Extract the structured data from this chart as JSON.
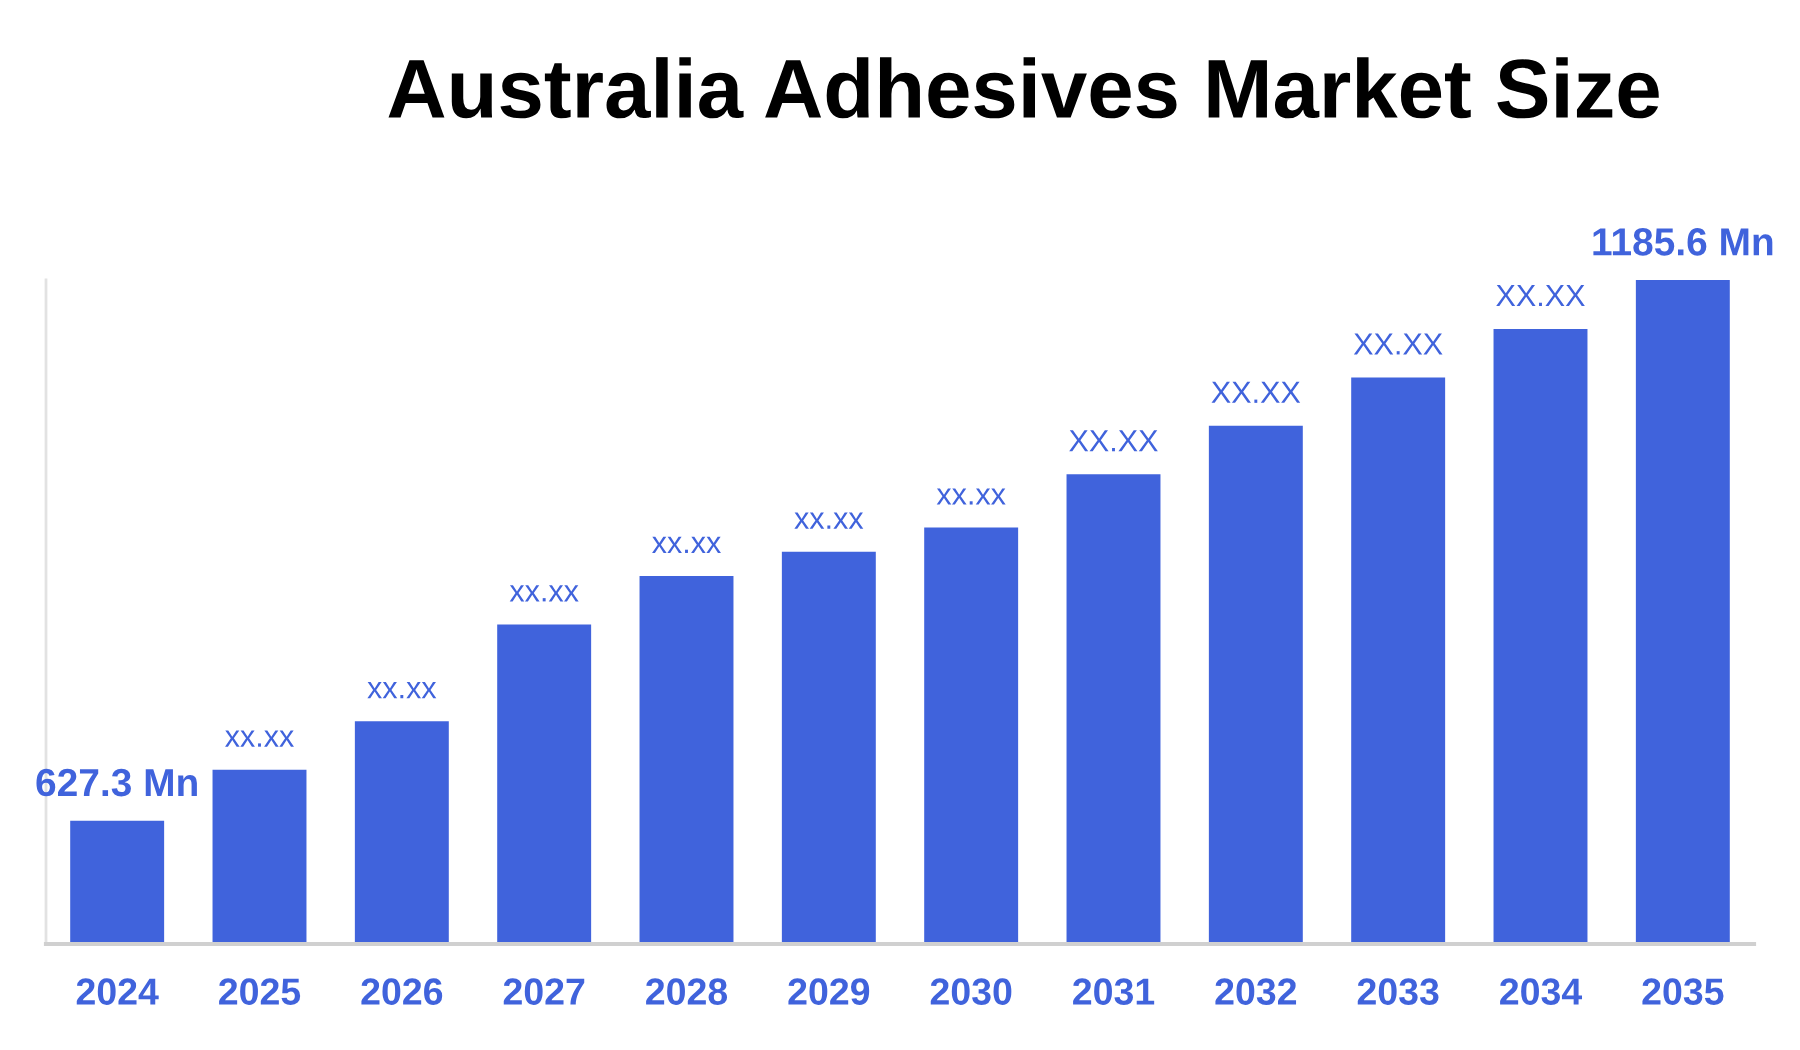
{
  "chart_data": {
    "type": "bar",
    "title": "Australia Adhesives Market Size",
    "categories": [
      "2024",
      "2025",
      "2026",
      "2027",
      "2028",
      "2029",
      "2030",
      "2031",
      "2032",
      "2033",
      "2034",
      "2035"
    ],
    "values": [
      627.3,
      680,
      730,
      830,
      880,
      905,
      930,
      985,
      1035,
      1085,
      1135,
      1185.6
    ],
    "color": "#4063dc",
    "value_labels": [
      "627.3 Mn",
      "xx.xx",
      "xx.xx",
      "xx.xx",
      "xx.xx",
      "xx.xx",
      "xx.xx",
      "XX.XX",
      "XX.XX",
      "XX.XX",
      "XX.XX",
      "1185.6 Mn"
    ],
    "ylim": [
      500,
      1185.6
    ],
    "tick_labels": "x",
    "grid": false
  }
}
